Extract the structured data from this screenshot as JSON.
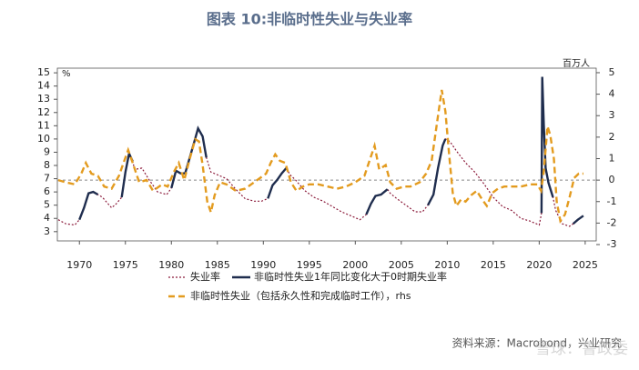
{
  "chart_data": {
    "type": "line",
    "title": "图表 10:非临时性失业与失业率",
    "ylabel": "%",
    "y2label": "百万人",
    "source": "资料来源：Macrobond，兴业研究",
    "watermark": "雪球：鲁政委",
    "xlim": [
      1967.6,
      2026.2
    ],
    "xticks": [
      1970,
      1975,
      1980,
      1985,
      1990,
      1995,
      2000,
      2005,
      2010,
      2015,
      2020,
      2025
    ],
    "ylim": [
      2.3,
      15.35
    ],
    "yticks": [
      3,
      4,
      5,
      6,
      7,
      8,
      9,
      10,
      11,
      12,
      13,
      14,
      15
    ],
    "y2lim": [
      -2.83,
      5.21
    ],
    "y2ticks": [
      -3,
      -2,
      -1,
      0,
      1,
      2,
      3,
      4,
      5
    ],
    "reference_line": {
      "axis": "y2",
      "value": 0,
      "color": "#888888"
    },
    "series": [
      {
        "name": "失业率",
        "color": "#8b1a3a",
        "style": "dotted",
        "axis": "y",
        "x": [
          1967.7,
          1968.5,
          1969.5,
          1970.0,
          1970.5,
          1971.0,
          1971.5,
          1972.0,
          1972.5,
          1973.5,
          1974.0,
          1974.6,
          1975.0,
          1975.4,
          1975.8,
          1976.0,
          1976.8,
          1977.5,
          1978.5,
          1979.5,
          1980.0,
          1980.5,
          1981.0,
          1981.5,
          1982.0,
          1982.5,
          1982.9,
          1983.4,
          1983.8,
          1984.3,
          1985.0,
          1986.0,
          1987.0,
          1988.0,
          1989.0,
          1989.8,
          1990.5,
          1991.0,
          1991.5,
          1992.0,
          1992.5,
          1992.9,
          1993.5,
          1994.5,
          1995.5,
          1996.5,
          1997.5,
          1998.5,
          1999.5,
          2000.5,
          2001.2,
          2001.7,
          2002.2,
          2002.8,
          2003.5,
          2003.8,
          2004.5,
          2005.5,
          2006.5,
          2007.3,
          2007.9,
          2008.5,
          2009.0,
          2009.5,
          2009.8,
          2010.3,
          2011.0,
          2012.0,
          2013.0,
          2014.0,
          2015.0,
          2016.0,
          2017.0,
          2018.0,
          2019.0,
          2020.0,
          2020.25,
          2020.33,
          2020.5,
          2020.7,
          2021.0,
          2021.5,
          2021.8,
          2022.5,
          2023.3,
          2023.7,
          2024.2,
          2024.8
        ],
        "values": [
          3.9,
          3.6,
          3.5,
          3.9,
          4.8,
          5.9,
          6.0,
          5.8,
          5.6,
          4.8,
          5.1,
          5.6,
          7.5,
          8.9,
          8.3,
          7.7,
          7.8,
          7.0,
          6.0,
          5.8,
          6.3,
          7.6,
          7.4,
          7.4,
          8.6,
          9.8,
          10.8,
          10.2,
          8.6,
          7.5,
          7.3,
          7.0,
          6.2,
          5.5,
          5.3,
          5.3,
          5.5,
          6.5,
          6.9,
          7.4,
          7.8,
          7.3,
          6.9,
          6.1,
          5.6,
          5.3,
          4.9,
          4.5,
          4.2,
          3.9,
          4.3,
          5.1,
          5.7,
          5.8,
          6.2,
          5.9,
          5.5,
          5.0,
          4.5,
          4.5,
          5.0,
          5.8,
          7.8,
          9.5,
          10.0,
          9.8,
          9.1,
          8.2,
          7.5,
          6.6,
          5.6,
          4.9,
          4.6,
          4.0,
          3.8,
          3.5,
          4.4,
          14.7,
          11.1,
          7.8,
          6.7,
          5.6,
          4.6,
          3.6,
          3.4,
          3.6,
          3.9,
          4.2
        ]
      },
      {
        "name": "非临时性失业1年同比变化大于0时期失业率",
        "color": "#1f2d4e",
        "style": "solid",
        "axis": "y",
        "x": [
          1967.7,
          1968.5,
          1969.5,
          1970.0,
          1970.5,
          1971.0,
          1971.5,
          1972.0,
          1972.5,
          1973.5,
          1974.0,
          1974.6,
          1975.0,
          1975.4,
          1975.8,
          1976.0,
          1976.8,
          1977.5,
          1978.5,
          1979.5,
          1980.0,
          1980.5,
          1981.0,
          1981.5,
          1982.0,
          1982.5,
          1982.9,
          1983.4,
          1983.8,
          1984.3,
          1985.0,
          1986.0,
          1987.0,
          1988.0,
          1989.0,
          1989.8,
          1990.5,
          1991.0,
          1991.5,
          1992.0,
          1992.5,
          1992.9,
          1993.5,
          1994.5,
          1995.5,
          1996.5,
          1997.5,
          1998.5,
          1999.5,
          2000.5,
          2001.2,
          2001.7,
          2002.2,
          2002.8,
          2003.5,
          2003.8,
          2004.5,
          2005.5,
          2006.5,
          2007.3,
          2007.9,
          2008.5,
          2009.0,
          2009.5,
          2009.8,
          2010.3,
          2011.0,
          2012.0,
          2013.0,
          2014.0,
          2015.0,
          2016.0,
          2017.0,
          2018.0,
          2019.0,
          2020.0,
          2020.25,
          2020.33,
          2020.5,
          2020.7,
          2021.0,
          2021.5,
          2021.8,
          2022.5,
          2023.3,
          2023.7,
          2024.2,
          2024.8
        ],
        "values": [
          null,
          null,
          null,
          3.9,
          4.8,
          5.9,
          6.0,
          5.8,
          null,
          null,
          null,
          5.6,
          7.5,
          8.9,
          8.3,
          null,
          null,
          null,
          null,
          null,
          6.3,
          7.6,
          7.4,
          7.4,
          8.6,
          9.8,
          10.8,
          10.2,
          8.6,
          null,
          null,
          null,
          null,
          null,
          null,
          null,
          5.5,
          6.5,
          6.9,
          7.4,
          7.8,
          null,
          null,
          null,
          null,
          null,
          null,
          null,
          null,
          null,
          4.3,
          5.1,
          5.7,
          5.8,
          6.2,
          null,
          null,
          null,
          null,
          null,
          5.0,
          5.8,
          7.8,
          9.5,
          10.0,
          null,
          null,
          null,
          null,
          null,
          null,
          null,
          null,
          null,
          null,
          null,
          4.4,
          14.7,
          11.1,
          7.8,
          6.7,
          5.6,
          null,
          null,
          null,
          3.6,
          3.9,
          4.2
        ]
      },
      {
        "name": "非临时性失业（包括永久性和完成临时工作），rhs",
        "color": "#e39b1f",
        "style": "dashed",
        "axis": "y2",
        "x": [
          1967.7,
          1968.5,
          1969.5,
          1970.2,
          1970.7,
          1971.3,
          1972.0,
          1972.7,
          1973.5,
          1974.3,
          1974.8,
          1975.3,
          1975.8,
          1976.5,
          1977.3,
          1978.0,
          1979.0,
          1979.6,
          1980.3,
          1980.8,
          1981.4,
          1982.0,
          1982.6,
          1983.0,
          1983.4,
          1983.9,
          1984.3,
          1984.7,
          1985.3,
          1986.0,
          1987.0,
          1988.0,
          1989.0,
          1990.3,
          1990.8,
          1991.3,
          1991.8,
          1992.4,
          1993.0,
          1993.6,
          1994.3,
          1995.0,
          1996.0,
          1997.0,
          1998.0,
          1999.0,
          2000.0,
          2001.0,
          2001.7,
          2002.1,
          2002.6,
          2003.3,
          2003.8,
          2004.5,
          2005.3,
          2006.0,
          2007.0,
          2007.7,
          2008.3,
          2008.9,
          2009.4,
          2009.8,
          2010.2,
          2010.6,
          2011.0,
          2011.5,
          2012.0,
          2012.6,
          2013.2,
          2013.8,
          2014.3,
          2014.9,
          2015.5,
          2016.2,
          2017.0,
          2018.0,
          2019.0,
          2019.8,
          2020.2,
          2020.5,
          2020.9,
          2021.2,
          2021.6,
          2021.9,
          2022.3,
          2022.8,
          2023.3,
          2023.8,
          2024.3,
          2024.8
        ],
        "values": [
          0.0,
          -0.1,
          -0.2,
          0.3,
          0.8,
          0.3,
          0.2,
          -0.3,
          -0.4,
          0.2,
          0.8,
          1.4,
          0.8,
          -0.1,
          0.0,
          -0.5,
          -0.2,
          -0.3,
          0.4,
          0.8,
          0.0,
          1.0,
          1.9,
          1.8,
          0.7,
          -1.0,
          -1.5,
          -0.7,
          -0.1,
          -0.2,
          -0.5,
          -0.4,
          -0.1,
          0.3,
          0.8,
          1.2,
          0.9,
          0.8,
          -0.1,
          -0.5,
          -0.3,
          -0.2,
          -0.2,
          -0.3,
          -0.4,
          -0.3,
          -0.1,
          0.2,
          1.1,
          1.6,
          0.5,
          0.7,
          -0.1,
          -0.4,
          -0.3,
          -0.3,
          -0.1,
          0.3,
          0.9,
          2.7,
          4.2,
          3.2,
          1.2,
          -0.6,
          -1.2,
          -0.9,
          -1.0,
          -0.7,
          -0.5,
          -0.9,
          -1.2,
          -0.6,
          -0.4,
          -0.3,
          -0.3,
          -0.3,
          -0.2,
          -0.2,
          -0.5,
          0.4,
          2.5,
          2.1,
          1.0,
          -1.0,
          -1.9,
          -1.6,
          -0.8,
          0.1,
          0.3,
          0.3
        ]
      }
    ]
  }
}
